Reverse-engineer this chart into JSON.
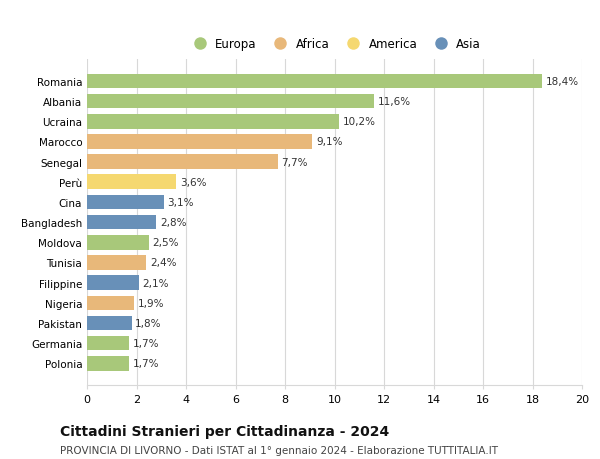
{
  "countries": [
    "Romania",
    "Albania",
    "Ucraina",
    "Marocco",
    "Senegal",
    "Perù",
    "Cina",
    "Bangladesh",
    "Moldova",
    "Tunisia",
    "Filippine",
    "Nigeria",
    "Pakistan",
    "Germania",
    "Polonia"
  ],
  "values": [
    18.4,
    11.6,
    10.2,
    9.1,
    7.7,
    3.6,
    3.1,
    2.8,
    2.5,
    2.4,
    2.1,
    1.9,
    1.8,
    1.7,
    1.7
  ],
  "labels": [
    "18,4%",
    "11,6%",
    "10,2%",
    "9,1%",
    "7,7%",
    "3,6%",
    "3,1%",
    "2,8%",
    "2,5%",
    "2,4%",
    "2,1%",
    "1,9%",
    "1,8%",
    "1,7%",
    "1,7%"
  ],
  "continents": [
    "Europa",
    "Europa",
    "Europa",
    "Africa",
    "Africa",
    "America",
    "Asia",
    "Asia",
    "Europa",
    "Africa",
    "Asia",
    "Africa",
    "Asia",
    "Europa",
    "Europa"
  ],
  "continent_colors": {
    "Europa": "#a8c87a",
    "Africa": "#e8b87a",
    "America": "#f5d870",
    "Asia": "#6890b8"
  },
  "legend_order": [
    "Europa",
    "Africa",
    "America",
    "Asia"
  ],
  "title": "Cittadini Stranieri per Cittadinanza - 2024",
  "subtitle": "PROVINCIA DI LIVORNO - Dati ISTAT al 1° gennaio 2024 - Elaborazione TUTTITALIA.IT",
  "xlim": [
    0,
    20
  ],
  "xticks": [
    0,
    2,
    4,
    6,
    8,
    10,
    12,
    14,
    16,
    18,
    20
  ],
  "background_color": "#ffffff",
  "grid_color": "#d8d8d8",
  "bar_height": 0.72,
  "label_fontsize": 7.5,
  "title_fontsize": 10,
  "subtitle_fontsize": 7.5,
  "ytick_fontsize": 7.5,
  "xtick_fontsize": 8,
  "legend_fontsize": 8.5
}
